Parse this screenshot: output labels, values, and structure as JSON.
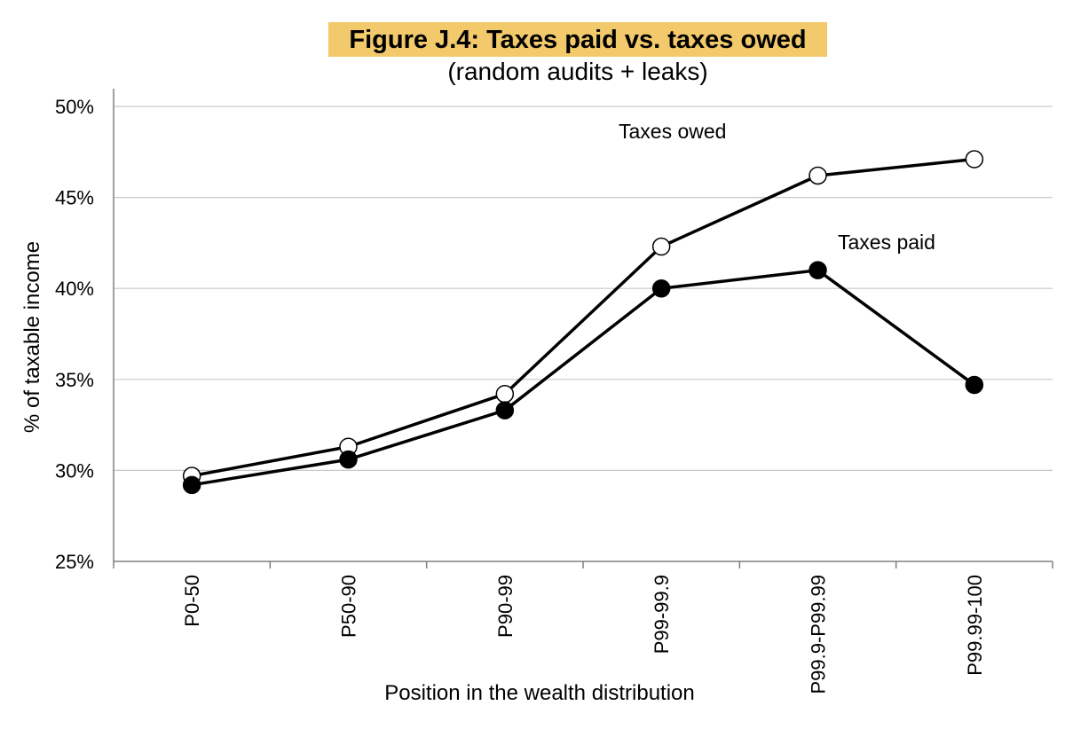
{
  "chart_data": {
    "type": "line",
    "title": "Figure J.4: Taxes paid vs. taxes owed",
    "subtitle": "(random audits + leaks)",
    "xlabel": "Position in the wealth distribution",
    "ylabel": "% of taxable income",
    "categories": [
      "P0-50",
      "P50-90",
      "P90-99",
      "P99-99.9",
      "P99.9-P99.99",
      "P99.99-100"
    ],
    "ylim": [
      25,
      50
    ],
    "yticks": [
      25,
      30,
      35,
      40,
      45,
      50
    ],
    "ytick_labels": [
      "25%",
      "30%",
      "35%",
      "40%",
      "45%",
      "50%"
    ],
    "grid": true,
    "series": [
      {
        "name": "Taxes owed",
        "marker": "open-circle",
        "values": [
          29.7,
          31.3,
          34.2,
          42.3,
          46.2,
          47.1
        ]
      },
      {
        "name": "Taxes paid",
        "marker": "filled-circle",
        "values": [
          29.2,
          30.6,
          33.3,
          40.0,
          41.0,
          34.7
        ]
      }
    ],
    "colors": {
      "title_highlight": "#f2c96b",
      "line": "#000000",
      "grid": "#c8c8c8",
      "axis": "#808080"
    }
  }
}
